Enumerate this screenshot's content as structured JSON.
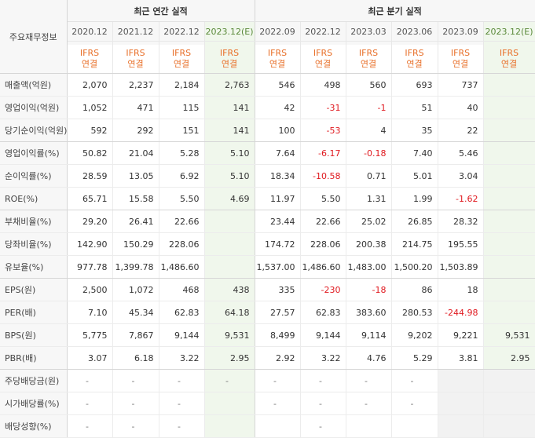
{
  "header": {
    "corner_label": "주요재무정보",
    "annual_title": "최근 연간 실적",
    "quarter_title": "최근 분기 실적",
    "annual_periods": [
      "2020.12",
      "2021.12",
      "2022.12",
      "2023.12(E)"
    ],
    "quarter_periods": [
      "2022.09",
      "2022.12",
      "2023.03",
      "2023.06",
      "2023.09",
      "2023.12(E)"
    ],
    "ifrs_line1": "IFRS",
    "ifrs_line2": "연결"
  },
  "rows": [
    {
      "label": "매출액(억원)",
      "values": [
        "2,070",
        "2,237",
        "2,184",
        "2,763",
        "546",
        "498",
        "560",
        "693",
        "737",
        ""
      ]
    },
    {
      "label": "영업이익(억원)",
      "values": [
        "1,052",
        "471",
        "115",
        "141",
        "42",
        "-31",
        "-1",
        "51",
        "40",
        ""
      ]
    },
    {
      "label": "당기순이익(억원)",
      "values": [
        "592",
        "292",
        "151",
        "141",
        "100",
        "-53",
        "4",
        "35",
        "22",
        ""
      ]
    },
    {
      "label": "영업이익률(%)",
      "values": [
        "50.82",
        "21.04",
        "5.28",
        "5.10",
        "7.64",
        "-6.17",
        "-0.18",
        "7.40",
        "5.46",
        ""
      ]
    },
    {
      "label": "순이익률(%)",
      "values": [
        "28.59",
        "13.05",
        "6.92",
        "5.10",
        "18.34",
        "-10.58",
        "0.71",
        "5.01",
        "3.04",
        ""
      ]
    },
    {
      "label": "ROE(%)",
      "values": [
        "65.71",
        "15.58",
        "5.50",
        "4.69",
        "11.97",
        "5.50",
        "1.31",
        "1.99",
        "-1.62",
        ""
      ]
    },
    {
      "label": "부채비율(%)",
      "values": [
        "29.20",
        "26.41",
        "22.66",
        "",
        "23.44",
        "22.66",
        "25.02",
        "26.85",
        "28.32",
        ""
      ]
    },
    {
      "label": "당좌비율(%)",
      "values": [
        "142.90",
        "150.29",
        "228.06",
        "",
        "174.72",
        "228.06",
        "200.38",
        "214.75",
        "195.55",
        ""
      ]
    },
    {
      "label": "유보율(%)",
      "values": [
        "977.78",
        "1,399.78",
        "1,486.60",
        "",
        "1,537.00",
        "1,486.60",
        "1,483.00",
        "1,500.20",
        "1,503.89",
        ""
      ]
    },
    {
      "label": "EPS(원)",
      "values": [
        "2,500",
        "1,072",
        "468",
        "438",
        "335",
        "-230",
        "-18",
        "86",
        "18",
        ""
      ]
    },
    {
      "label": "PER(배)",
      "values": [
        "7.10",
        "45.34",
        "62.83",
        "64.18",
        "27.57",
        "62.83",
        "383.60",
        "280.53",
        "-244.98",
        ""
      ]
    },
    {
      "label": "BPS(원)",
      "values": [
        "5,775",
        "7,867",
        "9,144",
        "9,531",
        "8,499",
        "9,144",
        "9,114",
        "9,202",
        "9,221",
        "9,531"
      ]
    },
    {
      "label": "PBR(배)",
      "values": [
        "3.07",
        "6.18",
        "3.22",
        "2.95",
        "2.92",
        "3.22",
        "4.76",
        "5.29",
        "3.81",
        "2.95"
      ]
    },
    {
      "label": "주당배당금(원)",
      "values": [
        "-",
        "-",
        "-",
        "-",
        "-",
        "-",
        "-",
        "-",
        "",
        ""
      ]
    },
    {
      "label": "시가배당률(%)",
      "values": [
        "-",
        "-",
        "-",
        "",
        "-",
        "-",
        "-",
        "-",
        "",
        ""
      ]
    },
    {
      "label": "배당성향(%)",
      "values": [
        "-",
        "-",
        "-",
        "",
        "",
        "-",
        "",
        "",
        "",
        ""
      ]
    }
  ],
  "colors": {
    "negative": "#e0191f",
    "ifrs": "#e8702a",
    "estimate_bg": "#f0f7ec",
    "estimate_text": "#5a8a3a"
  }
}
